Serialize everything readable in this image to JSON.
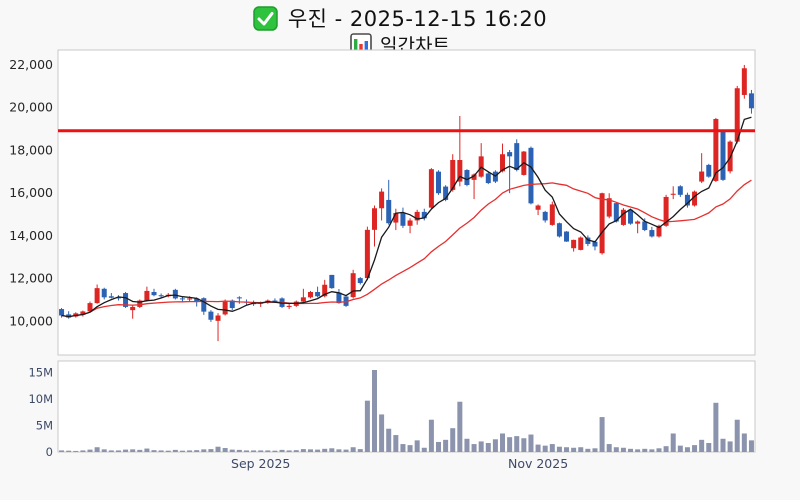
{
  "header": {
    "title": "우진 - 2025-12-15 16:20",
    "subtitle": "일간차트",
    "check_icon": "green-checkbox",
    "subtitle_icon": "bar-chart"
  },
  "colors": {
    "up_candle": "#dd2524",
    "down_candle": "#2c62b4",
    "ma_short": "#1a1a1a",
    "ma_long": "#e63030",
    "resistance_line": "#ee1111",
    "volume_bar": "#8b93ad",
    "price_label": "#262626",
    "slate_label": "#3e4a68",
    "panel_border": "#c9c9c9",
    "panel_bg": "#ffffff",
    "check_green": "#2fc23c",
    "icon_bar_green": "#2dab44",
    "icon_bar_red": "#e5382e",
    "icon_bar_blue": "#2f6fe0"
  },
  "chart_data": {
    "type": "candlestick",
    "title": "우진 - 2025-12-15 16:20",
    "subtitle": "일간차트",
    "legend_position": "none",
    "grid": false,
    "price_axis": {
      "min": 8400,
      "max": 22680,
      "ticks": [
        {
          "v": 10000,
          "label": "10,000"
        },
        {
          "v": 12000,
          "label": "12,000"
        },
        {
          "v": 14000,
          "label": "14,000"
        },
        {
          "v": 16000,
          "label": "16,000"
        },
        {
          "v": 18000,
          "label": "18,000"
        },
        {
          "v": 20000,
          "label": "20,000"
        },
        {
          "v": 22000,
          "label": "22,000"
        }
      ]
    },
    "volume_axis": {
      "max_m": 17.2,
      "ticks": [
        {
          "v": 0,
          "label": "0"
        },
        {
          "v": 5,
          "label": "5M"
        },
        {
          "v": 10,
          "label": "10M"
        },
        {
          "v": 15,
          "label": "15M"
        }
      ]
    },
    "x_ticks": [
      {
        "index": 28,
        "label": "Sep 2025"
      },
      {
        "index": 67,
        "label": "Nov 2025"
      }
    ],
    "resistance_line": 18900,
    "ma_short_window": 5,
    "ma_long_window": 20,
    "candles_ohlc": [
      [
        10550,
        10600,
        10150,
        10250
      ],
      [
        10300,
        10450,
        10100,
        10150
      ],
      [
        10200,
        10400,
        10150,
        10350
      ],
      [
        10280,
        10480,
        10200,
        10440
      ],
      [
        10440,
        10900,
        10400,
        10830
      ],
      [
        10830,
        11700,
        10800,
        11530
      ],
      [
        11500,
        11550,
        11000,
        11100
      ],
      [
        11150,
        11300,
        11050,
        11080
      ],
      [
        11100,
        11200,
        10950,
        11050
      ],
      [
        11300,
        11350,
        10600,
        10650
      ],
      [
        10500,
        10750,
        10100,
        10650
      ],
      [
        10650,
        11000,
        10600,
        10950
      ],
      [
        10950,
        11600,
        10900,
        11400
      ],
      [
        11350,
        11500,
        11150,
        11200
      ],
      [
        11200,
        11280,
        11080,
        11150
      ],
      [
        11150,
        11300,
        11100,
        11220
      ],
      [
        11450,
        11500,
        11000,
        11050
      ],
      [
        11050,
        11150,
        10900,
        11020
      ],
      [
        11000,
        11150,
        10900,
        11050
      ],
      [
        11050,
        11100,
        10670,
        10900
      ],
      [
        11060,
        11100,
        10280,
        10430
      ],
      [
        10430,
        10500,
        9950,
        10050
      ],
      [
        10000,
        10360,
        9050,
        10250
      ],
      [
        10300,
        11000,
        10250,
        10900
      ],
      [
        10950,
        11000,
        10500,
        10600
      ],
      [
        11100,
        11150,
        10800,
        11050
      ],
      [
        10900,
        11000,
        10750,
        10850
      ],
      [
        10850,
        10950,
        10700,
        10780
      ],
      [
        10800,
        10900,
        10650,
        10870
      ],
      [
        10870,
        11000,
        10800,
        10950
      ],
      [
        10950,
        11050,
        10850,
        10900
      ],
      [
        11050,
        11100,
        10600,
        10650
      ],
      [
        10650,
        10800,
        10550,
        10700
      ],
      [
        10700,
        10950,
        10650,
        10900
      ],
      [
        10900,
        11500,
        10850,
        11100
      ],
      [
        11100,
        11400,
        11050,
        11350
      ],
      [
        11350,
        11600,
        11100,
        11150
      ],
      [
        11150,
        11920,
        11100,
        11690
      ],
      [
        12150,
        12150,
        11500,
        11530
      ],
      [
        11320,
        11490,
        10800,
        10830
      ],
      [
        11140,
        11150,
        10650,
        10700
      ],
      [
        11110,
        12390,
        11050,
        12230
      ],
      [
        12000,
        12050,
        11700,
        11770
      ],
      [
        12000,
        14410,
        11900,
        14260
      ],
      [
        14260,
        15400,
        13480,
        15270
      ],
      [
        15270,
        16200,
        14700,
        16050
      ],
      [
        15660,
        16600,
        14500,
        14570
      ],
      [
        14600,
        15250,
        14250,
        15050
      ],
      [
        15050,
        15300,
        14350,
        14450
      ],
      [
        14450,
        14800,
        14100,
        14700
      ],
      [
        14700,
        15200,
        14500,
        15100
      ],
      [
        15100,
        15250,
        14700,
        14800
      ],
      [
        15300,
        17150,
        15250,
        17100
      ],
      [
        16985,
        17050,
        15900,
        15975
      ],
      [
        16285,
        16350,
        15600,
        15660
      ],
      [
        16130,
        17800,
        16050,
        17530
      ],
      [
        16520,
        19590,
        16300,
        17530
      ],
      [
        17060,
        17100,
        16300,
        16360
      ],
      [
        16600,
        16900,
        15700,
        16850
      ],
      [
        16750,
        18320,
        16700,
        17700
      ],
      [
        16900,
        17000,
        16400,
        16450
      ],
      [
        16985,
        17050,
        16450,
        16520
      ],
      [
        17000,
        18300,
        16950,
        17800
      ],
      [
        17900,
        18000,
        15975,
        17700
      ],
      [
        18320,
        18500,
        17000,
        17060
      ],
      [
        16830,
        17950,
        16800,
        17925
      ],
      [
        18100,
        18160,
        15450,
        15500
      ],
      [
        15200,
        15450,
        14950,
        15400
      ],
      [
        15100,
        15150,
        14600,
        14700
      ],
      [
        14490,
        15580,
        14450,
        15450
      ],
      [
        14570,
        14600,
        13900,
        13950
      ],
      [
        14180,
        14200,
        13700,
        13710
      ],
      [
        13400,
        13800,
        13240,
        13790
      ],
      [
        13320,
        13950,
        13300,
        13900
      ],
      [
        13900,
        14000,
        13500,
        13600
      ],
      [
        13700,
        13750,
        13300,
        13480
      ],
      [
        13165,
        16000,
        13100,
        15975
      ],
      [
        14880,
        15975,
        14800,
        15740
      ],
      [
        15510,
        15550,
        14600,
        14650
      ],
      [
        14490,
        15280,
        14450,
        15200
      ],
      [
        15200,
        15250,
        14500,
        14550
      ],
      [
        14550,
        14700,
        14100,
        14650
      ],
      [
        14650,
        14800,
        14200,
        14250
      ],
      [
        14250,
        14400,
        13900,
        13950
      ],
      [
        13950,
        14500,
        13900,
        14450
      ],
      [
        14450,
        15900,
        14400,
        15800
      ],
      [
        15900,
        16300,
        15700,
        15950
      ],
      [
        16300,
        16350,
        15800,
        15900
      ],
      [
        15900,
        16000,
        15300,
        15400
      ],
      [
        15400,
        16100,
        15350,
        16050
      ],
      [
        16520,
        17850,
        16450,
        16990
      ],
      [
        17300,
        17350,
        16700,
        16750
      ],
      [
        16550,
        19500,
        16500,
        19450
      ],
      [
        18860,
        18900,
        16550,
        16600
      ],
      [
        17000,
        18450,
        16900,
        18390
      ],
      [
        18390,
        21000,
        18300,
        20890
      ],
      [
        20575,
        21980,
        20400,
        21825
      ],
      [
        20650,
        20810,
        19700,
        19950
      ]
    ],
    "volumes_m": [
      0.3,
      0.25,
      0.2,
      0.3,
      0.45,
      0.9,
      0.5,
      0.3,
      0.3,
      0.45,
      0.5,
      0.4,
      0.65,
      0.35,
      0.3,
      0.25,
      0.4,
      0.25,
      0.3,
      0.35,
      0.5,
      0.55,
      1.0,
      0.75,
      0.45,
      0.4,
      0.3,
      0.3,
      0.3,
      0.3,
      0.25,
      0.4,
      0.3,
      0.35,
      0.55,
      0.5,
      0.45,
      0.6,
      0.7,
      0.5,
      0.45,
      0.9,
      0.55,
      9.7,
      15.5,
      7.1,
      4.4,
      3.2,
      1.5,
      1.3,
      2.2,
      0.8,
      6.1,
      1.9,
      2.3,
      4.5,
      9.5,
      2.5,
      1.5,
      2.0,
      1.7,
      2.4,
      3.5,
      2.8,
      3.0,
      2.6,
      3.3,
      1.4,
      1.2,
      1.5,
      1.0,
      0.9,
      0.8,
      0.9,
      0.6,
      0.7,
      6.6,
      1.5,
      0.9,
      0.8,
      0.6,
      0.5,
      0.6,
      0.5,
      0.7,
      1.1,
      3.5,
      1.2,
      0.9,
      1.3,
      2.3,
      1.7,
      9.3,
      2.5,
      2.0,
      6.1,
      3.5,
      2.2
    ]
  }
}
